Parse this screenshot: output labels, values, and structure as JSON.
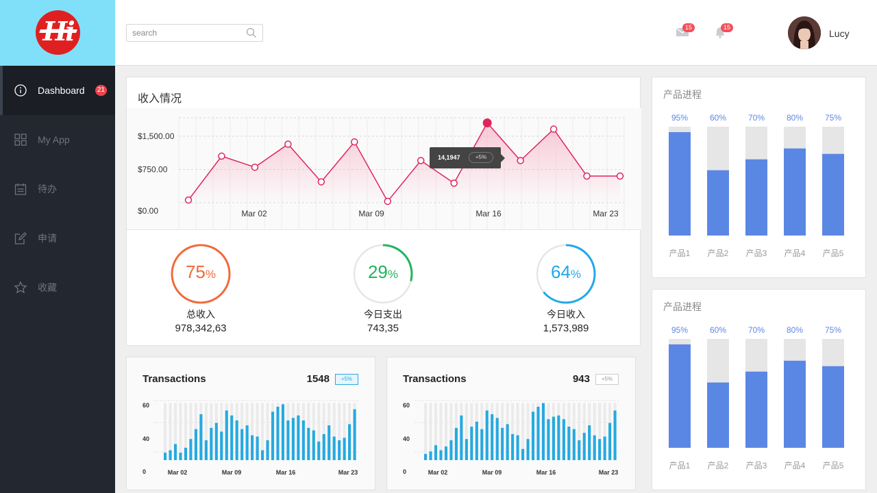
{
  "sidebar": {
    "logo_text": "Hi",
    "items": [
      {
        "label": "Dashboard",
        "icon": "info-icon",
        "badge": "21",
        "active": true
      },
      {
        "label": "My App",
        "icon": "grid-icon",
        "active": false
      },
      {
        "label": "待办",
        "icon": "calendar-icon",
        "active": false
      },
      {
        "label": "申请",
        "icon": "edit-icon",
        "active": false
      },
      {
        "label": "收藏",
        "icon": "star-icon",
        "active": false
      }
    ]
  },
  "header": {
    "search_placeholder": "search",
    "mail_badge": "15",
    "bell_badge": "15",
    "username": "Lucy"
  },
  "income": {
    "title": "收入情况",
    "tooltip_value": "14,1947",
    "tooltip_change": "+5%",
    "stats": [
      {
        "pct": 75,
        "label": "总收入",
        "value": "978,342,63",
        "color": "#f06a3a",
        "track": false
      },
      {
        "pct": 29,
        "label": "今日支出",
        "value": "743,35",
        "color": "#1fb45a",
        "track": true
      },
      {
        "pct": 64,
        "label": "今日收入",
        "value": "1,573,989",
        "color": "#20a8e8",
        "track": true
      }
    ]
  },
  "transactions": [
    {
      "title": "Transactions",
      "count": "1548",
      "badge": "+5%",
      "badge_style": "blue"
    },
    {
      "title": "Transactions",
      "count": "943",
      "badge": "+5%",
      "badge_style": "gray"
    }
  ],
  "progress_cards": [
    {
      "title": "产品进程"
    },
    {
      "title": "产品进程"
    }
  ],
  "colors": {
    "accent_line": "#e0245e",
    "bar_blue": "#5b87e4",
    "trans_bar": "#26a9e0"
  },
  "chart_data": [
    {
      "type": "line",
      "title": "",
      "x_ticks": [
        "Mar 02",
        "Mar 09",
        "Mar 16",
        "Mar 23"
      ],
      "y_ticks": [
        "$0.00",
        "$750.00",
        "$1,500.00"
      ],
      "ylim": [
        0,
        1900
      ],
      "x": [
        1,
        2,
        3,
        4,
        5,
        6,
        7,
        8,
        9,
        10,
        11,
        12,
        13,
        14
      ],
      "values": [
        60,
        1050,
        800,
        1320,
        470,
        1370,
        30,
        950,
        440,
        1800,
        950,
        1660,
        600,
        600
      ],
      "highlight_index": 9
    },
    {
      "type": "bar",
      "title": "Transactions",
      "x_ticks": [
        "Mar 02",
        "Mar 09",
        "Mar 16",
        "Mar 23"
      ],
      "y_ticks": [
        "0",
        "40",
        "60"
      ],
      "ylim": [
        20,
        68
      ],
      "values": [
        26,
        28,
        33,
        26,
        30,
        37,
        45,
        57,
        36,
        46,
        50,
        43,
        60,
        56,
        52,
        45,
        48,
        40,
        39,
        28,
        36,
        59,
        63,
        65,
        52,
        54,
        56,
        52,
        46,
        44,
        35,
        41,
        48,
        39,
        36,
        38,
        49,
        61
      ],
      "max_values": [
        66,
        66,
        66,
        66,
        66,
        66,
        66,
        66,
        66,
        66,
        66,
        66,
        66,
        66,
        66,
        66,
        66,
        66,
        66,
        66,
        66,
        66,
        66,
        66,
        66,
        66,
        66,
        66,
        66,
        66,
        66,
        66,
        66,
        66,
        66,
        66,
        66,
        66
      ]
    },
    {
      "type": "bar",
      "title": "Transactions",
      "x_ticks": [
        "Mar 02",
        "Mar 09",
        "Mar 16",
        "Mar 23"
      ],
      "y_ticks": [
        "0",
        "40",
        "60"
      ],
      "ylim": [
        20,
        68
      ],
      "values": [
        25,
        27,
        32,
        28,
        31,
        36,
        46,
        56,
        37,
        47,
        51,
        45,
        60,
        57,
        54,
        46,
        49,
        41,
        40,
        29,
        37,
        59,
        63,
        66,
        53,
        55,
        56,
        53,
        47,
        45,
        36,
        42,
        48,
        40,
        37,
        39,
        50,
        60
      ],
      "max_values": [
        66,
        66,
        66,
        66,
        66,
        66,
        66,
        66,
        66,
        66,
        66,
        66,
        66,
        66,
        66,
        66,
        66,
        66,
        66,
        66,
        66,
        66,
        66,
        66,
        66,
        66,
        66,
        66,
        66,
        66,
        66,
        66,
        66,
        66,
        66,
        66,
        66,
        66
      ]
    },
    {
      "type": "bar",
      "title": "产品进程",
      "categories": [
        "产品1",
        "产品2",
        "产品3",
        "产品4",
        "产品5"
      ],
      "values": [
        95,
        60,
        70,
        80,
        75
      ],
      "labels": [
        "95%",
        "60%",
        "70%",
        "80%",
        "75%"
      ],
      "ylim": [
        0,
        100
      ]
    },
    {
      "type": "bar",
      "title": "产品进程",
      "categories": [
        "产品1",
        "产品2",
        "产品3",
        "产品4",
        "产品5"
      ],
      "values": [
        95,
        60,
        70,
        80,
        75
      ],
      "labels": [
        "95%",
        "60%",
        "70%",
        "80%",
        "75%"
      ],
      "ylim": [
        0,
        100
      ]
    }
  ]
}
